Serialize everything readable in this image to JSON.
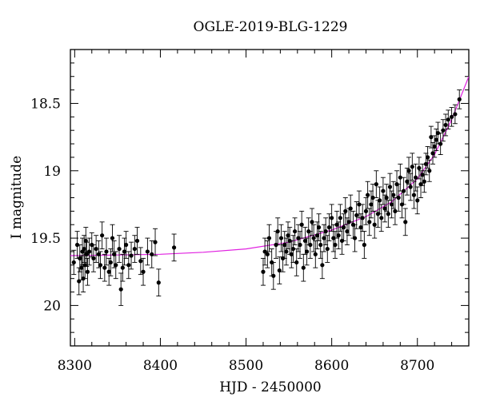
{
  "chart_data": {
    "type": "scatter",
    "title": "OGLE-2019-BLG-1229",
    "xlabel": "HJD - 2450000",
    "ylabel": "I magnitude",
    "xlim": [
      8295,
      8760
    ],
    "ylim": [
      20.3,
      18.1
    ],
    "y_inverted": true,
    "x_ticks": [
      8300,
      8400,
      8500,
      8600,
      8700
    ],
    "y_ticks": [
      18.5,
      19,
      19.5,
      20
    ],
    "x_tick_labels": [
      "8300",
      "8400",
      "8500",
      "8600",
      "8700"
    ],
    "y_tick_labels": [
      "18.5",
      "19",
      "19.5",
      "20"
    ],
    "grid": false,
    "colors": {
      "points": "#000000",
      "model": "#e020e0",
      "axes": "#000000"
    },
    "series": [
      {
        "type": "scatter_with_errorbars",
        "points": [
          [
            8299,
            19.68,
            0.09
          ],
          [
            8303,
            19.55,
            0.1
          ],
          [
            8305,
            19.82,
            0.1
          ],
          [
            8306,
            19.65,
            0.1
          ],
          [
            8308,
            19.72,
            0.09
          ],
          [
            8309,
            19.6,
            0.1
          ],
          [
            8310,
            19.8,
            0.1
          ],
          [
            8311,
            19.58,
            0.1
          ],
          [
            8312,
            19.7,
            0.1
          ],
          [
            8313,
            19.52,
            0.1
          ],
          [
            8314,
            19.62,
            0.09
          ],
          [
            8315,
            19.75,
            0.1
          ],
          [
            8317,
            19.6,
            0.1
          ],
          [
            8320,
            19.55,
            0.09
          ],
          [
            8322,
            19.65,
            0.1
          ],
          [
            8325,
            19.58,
            0.1
          ],
          [
            8328,
            19.62,
            0.1
          ],
          [
            8330,
            19.7,
            0.1
          ],
          [
            8332,
            19.48,
            0.1
          ],
          [
            8335,
            19.72,
            0.1
          ],
          [
            8337,
            19.6,
            0.1
          ],
          [
            8340,
            19.75,
            0.1
          ],
          [
            8342,
            19.68,
            0.1
          ],
          [
            8344,
            19.5,
            0.1
          ],
          [
            8346,
            19.62,
            0.1
          ],
          [
            8348,
            19.7,
            0.1
          ],
          [
            8352,
            19.58,
            0.1
          ],
          [
            8354,
            19.88,
            0.12
          ],
          [
            8356,
            19.72,
            0.1
          ],
          [
            8358,
            19.6,
            0.1
          ],
          [
            8360,
            19.55,
            0.1
          ],
          [
            8363,
            19.7,
            0.1
          ],
          [
            8366,
            19.63,
            0.1
          ],
          [
            8370,
            19.58,
            0.1
          ],
          [
            8373,
            19.52,
            0.1
          ],
          [
            8377,
            19.67,
            0.1
          ],
          [
            8380,
            19.75,
            0.1
          ],
          [
            8385,
            19.6,
            0.1
          ],
          [
            8390,
            19.62,
            0.1
          ],
          [
            8394,
            19.53,
            0.1
          ],
          [
            8398,
            19.83,
            0.1
          ],
          [
            8416,
            19.57,
            0.1
          ],
          [
            8520,
            19.75,
            0.1
          ],
          [
            8522,
            19.6,
            0.1
          ],
          [
            8525,
            19.62,
            0.1
          ],
          [
            8527,
            19.5,
            0.1
          ],
          [
            8530,
            19.68,
            0.1
          ],
          [
            8532,
            19.78,
            0.1
          ],
          [
            8535,
            19.55,
            0.1
          ],
          [
            8537,
            19.45,
            0.1
          ],
          [
            8539,
            19.74,
            0.1
          ],
          [
            8541,
            19.5,
            0.1
          ],
          [
            8543,
            19.65,
            0.1
          ],
          [
            8545,
            19.55,
            0.1
          ],
          [
            8547,
            19.6,
            0.1
          ],
          [
            8549,
            19.48,
            0.1
          ],
          [
            8551,
            19.52,
            0.1
          ],
          [
            8553,
            19.62,
            0.1
          ],
          [
            8555,
            19.58,
            0.1
          ],
          [
            8557,
            19.45,
            0.1
          ],
          [
            8559,
            19.68,
            0.1
          ],
          [
            8561,
            19.5,
            0.1
          ],
          [
            8563,
            19.55,
            0.1
          ],
          [
            8565,
            19.4,
            0.1
          ],
          [
            8567,
            19.72,
            0.1
          ],
          [
            8569,
            19.52,
            0.1
          ],
          [
            8571,
            19.6,
            0.1
          ],
          [
            8573,
            19.45,
            0.1
          ],
          [
            8575,
            19.55,
            0.1
          ],
          [
            8577,
            19.38,
            0.1
          ],
          [
            8579,
            19.5,
            0.1
          ],
          [
            8581,
            19.62,
            0.1
          ],
          [
            8583,
            19.48,
            0.1
          ],
          [
            8585,
            19.42,
            0.1
          ],
          [
            8587,
            19.55,
            0.1
          ],
          [
            8589,
            19.7,
            0.1
          ],
          [
            8591,
            19.5,
            0.1
          ],
          [
            8593,
            19.45,
            0.1
          ],
          [
            8595,
            19.58,
            0.1
          ],
          [
            8597,
            19.42,
            0.1
          ],
          [
            8600,
            19.35,
            0.1
          ],
          [
            8602,
            19.5,
            0.1
          ],
          [
            8604,
            19.55,
            0.1
          ],
          [
            8606,
            19.4,
            0.1
          ],
          [
            8608,
            19.48,
            0.1
          ],
          [
            8610,
            19.35,
            0.1
          ],
          [
            8612,
            19.52,
            0.1
          ],
          [
            8614,
            19.42,
            0.1
          ],
          [
            8616,
            19.3,
            0.1
          ],
          [
            8618,
            19.45,
            0.1
          ],
          [
            8620,
            19.38,
            0.1
          ],
          [
            8622,
            19.28,
            0.1
          ],
          [
            8625,
            19.4,
            0.1
          ],
          [
            8627,
            19.5,
            0.1
          ],
          [
            8629,
            19.33,
            0.1
          ],
          [
            8632,
            19.25,
            0.1
          ],
          [
            8634,
            19.42,
            0.1
          ],
          [
            8636,
            19.35,
            0.1
          ],
          [
            8638,
            19.55,
            0.1
          ],
          [
            8640,
            19.3,
            0.1
          ],
          [
            8642,
            19.18,
            0.1
          ],
          [
            8644,
            19.38,
            0.1
          ],
          [
            8646,
            19.25,
            0.1
          ],
          [
            8648,
            19.2,
            0.1
          ],
          [
            8650,
            19.4,
            0.1
          ],
          [
            8652,
            19.1,
            0.1
          ],
          [
            8654,
            19.32,
            0.1
          ],
          [
            8656,
            19.22,
            0.1
          ],
          [
            8658,
            19.35,
            0.1
          ],
          [
            8660,
            19.15,
            0.1
          ],
          [
            8662,
            19.28,
            0.1
          ],
          [
            8664,
            19.2,
            0.1
          ],
          [
            8666,
            19.32,
            0.1
          ],
          [
            8668,
            19.12,
            0.1
          ],
          [
            8670,
            19.25,
            0.1
          ],
          [
            8672,
            19.18,
            0.1
          ],
          [
            8674,
            19.3,
            0.1
          ],
          [
            8676,
            19.1,
            0.1
          ],
          [
            8678,
            19.2,
            0.1
          ],
          [
            8680,
            19.05,
            0.1
          ],
          [
            8682,
            19.25,
            0.1
          ],
          [
            8684,
            19.15,
            0.1
          ],
          [
            8686,
            19.38,
            0.1
          ],
          [
            8688,
            19.08,
            0.1
          ],
          [
            8690,
            19.0,
            0.1
          ],
          [
            8692,
            19.12,
            0.1
          ],
          [
            8694,
            18.97,
            0.1
          ],
          [
            8696,
            19.18,
            0.1
          ],
          [
            8698,
            19.05,
            0.1
          ],
          [
            8700,
            19.22,
            0.1
          ],
          [
            8702,
            18.98,
            0.08
          ],
          [
            8704,
            19.1,
            0.1
          ],
          [
            8706,
            19.03,
            0.08
          ],
          [
            8708,
            19.08,
            0.08
          ],
          [
            8710,
            18.95,
            0.08
          ],
          [
            8712,
            18.9,
            0.08
          ],
          [
            8714,
            19.0,
            0.08
          ],
          [
            8716,
            18.75,
            0.08
          ],
          [
            8718,
            18.87,
            0.08
          ],
          [
            8720,
            18.82,
            0.08
          ],
          [
            8722,
            18.77,
            0.08
          ],
          [
            8724,
            18.72,
            0.08
          ],
          [
            8727,
            18.8,
            0.08
          ],
          [
            8730,
            18.7,
            0.08
          ],
          [
            8733,
            18.66,
            0.08
          ],
          [
            8736,
            18.62,
            0.07
          ],
          [
            8740,
            18.6,
            0.07
          ],
          [
            8744,
            18.58,
            0.07
          ],
          [
            8749,
            18.47,
            0.07
          ]
        ]
      },
      {
        "type": "model_curve",
        "points": [
          [
            8295,
            19.63
          ],
          [
            8350,
            19.625
          ],
          [
            8400,
            19.62
          ],
          [
            8450,
            19.605
          ],
          [
            8500,
            19.58
          ],
          [
            8550,
            19.53
          ],
          [
            8600,
            19.44
          ],
          [
            8640,
            19.34
          ],
          [
            8670,
            19.23
          ],
          [
            8700,
            19.06
          ],
          [
            8720,
            18.88
          ],
          [
            8740,
            18.62
          ],
          [
            8760,
            18.3
          ]
        ]
      }
    ]
  }
}
